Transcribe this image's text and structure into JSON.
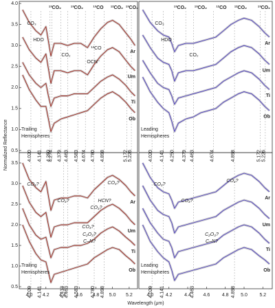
{
  "chart_data": [
    {
      "type": "line",
      "title_lines": [
        "Trailing",
        "Hemispheres"
      ],
      "ylabel": "Normalized Reflectance",
      "xlim": [
        3.88,
        5.3
      ],
      "ylim": [
        0.45,
        4.05
      ],
      "yticks": [
        0.5,
        {
          "value": 1,
          "label": "1.0"
        },
        1.5,
        {
          "value": 2,
          "label": "2.0"
        },
        2.5,
        {
          "value": 3,
          "label": "3.0"
        },
        3.5,
        {
          "value": 4,
          "label": "4.0"
        }
      ],
      "x": [
        3.92,
        4.0,
        4.08,
        4.14,
        4.2,
        4.23,
        4.26,
        4.3,
        4.38,
        4.46,
        4.54,
        4.62,
        4.7,
        4.78,
        4.86,
        4.94,
        5.0,
        5.08,
        5.16,
        5.22,
        5.27
      ],
      "series": [
        {
          "name": "Ar",
          "color": "#a3261c",
          "values": [
            3.85,
            3.55,
            3.35,
            3.25,
            3.45,
            3.1,
            2.75,
            3.05,
            3.05,
            3.0,
            3.05,
            3.05,
            2.95,
            3.2,
            3.4,
            3.55,
            3.6,
            3.5,
            3.3,
            3.15,
            3.0
          ]
        },
        {
          "name": "Um",
          "color": "#a3261c",
          "values": [
            3.2,
            2.9,
            2.7,
            2.6,
            2.8,
            2.45,
            2.1,
            2.4,
            2.4,
            2.35,
            2.4,
            2.4,
            2.3,
            2.55,
            2.75,
            2.9,
            2.95,
            2.85,
            2.65,
            2.5,
            2.4
          ]
        },
        {
          "name": "Ti",
          "color": "#a3261c",
          "values": [
            2.6,
            2.3,
            2.1,
            2.0,
            2.1,
            1.8,
            1.55,
            1.75,
            1.8,
            1.8,
            1.85,
            1.85,
            1.85,
            2.0,
            2.15,
            2.25,
            2.3,
            2.2,
            2.05,
            1.9,
            1.8
          ]
        },
        {
          "name": "Ob",
          "color": "#a3261c",
          "values": [
            2.3,
            1.95,
            1.7,
            1.55,
            1.55,
            1.25,
            0.95,
            1.15,
            1.25,
            1.3,
            1.35,
            1.4,
            1.45,
            1.6,
            1.75,
            1.85,
            1.9,
            1.8,
            1.65,
            1.5,
            1.4
          ]
        }
      ],
      "vlines": [
        {
          "value": 4.02,
          "label": "4.020"
        },
        {
          "value": 4.141,
          "label": "4.141"
        },
        {
          "value": 4.25,
          "label": "4.250"
        },
        {
          "value": 4.274,
          "label": "4.274"
        },
        {
          "value": 4.379,
          "label": "4.379"
        },
        {
          "value": 4.463,
          "label": "4.463"
        },
        {
          "value": 4.583,
          "label": "4.583"
        },
        {
          "value": 4.674,
          "label": "4.674"
        },
        {
          "value": 4.78,
          "label": "4.780"
        },
        {
          "value": 4.898,
          "label": "4.898"
        },
        {
          "value": 5.172,
          "label": "5.172"
        },
        {
          "value": 5.226,
          "label": "5.226"
        }
      ],
      "headers": [
        "¹³CO₂",
        "¹³CO₂",
        "¹³CO",
        "¹²CO₂",
        "¹³CO₂"
      ],
      "annotations": [
        "CO₃",
        "HDO",
        "CO₂",
        "OCN⁻",
        "¹³CO"
      ]
    },
    {
      "type": "line",
      "title_lines": [
        "Leading",
        "Hemispheres"
      ],
      "xlim": [
        3.88,
        5.3
      ],
      "ylim": [
        0.45,
        4.05
      ],
      "x": [
        3.92,
        4.0,
        4.08,
        4.14,
        4.2,
        4.23,
        4.26,
        4.3,
        4.38,
        4.46,
        4.54,
        4.62,
        4.7,
        4.78,
        4.86,
        4.94,
        5.0,
        5.08,
        5.16,
        5.22,
        5.27
      ],
      "series": [
        {
          "name": "Ar",
          "color": "#4b3cc4",
          "values": [
            3.85,
            3.55,
            3.35,
            3.25,
            3.2,
            3.05,
            2.85,
            3.0,
            3.05,
            3.05,
            3.1,
            3.15,
            3.2,
            3.35,
            3.5,
            3.6,
            3.65,
            3.6,
            3.45,
            3.3,
            3.2
          ]
        },
        {
          "name": "Um",
          "color": "#4b3cc4",
          "values": [
            3.25,
            2.95,
            2.7,
            2.6,
            2.55,
            2.4,
            2.15,
            2.35,
            2.4,
            2.4,
            2.45,
            2.5,
            2.55,
            2.7,
            2.85,
            2.95,
            3.0,
            2.95,
            2.8,
            2.65,
            2.55
          ]
        },
        {
          "name": "Ti",
          "color": "#4b3cc4",
          "values": [
            2.65,
            2.35,
            2.1,
            2.0,
            1.95,
            1.8,
            1.6,
            1.75,
            1.8,
            1.85,
            1.9,
            1.95,
            2.0,
            2.15,
            2.25,
            2.35,
            2.4,
            2.35,
            2.2,
            2.05,
            1.95
          ]
        },
        {
          "name": "Ob",
          "color": "#4b3cc4",
          "values": [
            2.25,
            1.9,
            1.65,
            1.5,
            1.4,
            1.2,
            0.95,
            1.15,
            1.25,
            1.3,
            1.4,
            1.45,
            1.5,
            1.65,
            1.75,
            1.85,
            1.9,
            1.85,
            1.7,
            1.55,
            1.45
          ]
        }
      ],
      "vlines": [
        {
          "value": 4.02,
          "label": "4.020"
        },
        {
          "value": 4.141,
          "label": "4.141"
        },
        {
          "value": 4.25,
          "label": "4.250"
        },
        {
          "value": 4.379,
          "label": "4.379"
        },
        {
          "value": 4.463,
          "label": "4.463"
        },
        {
          "value": 4.674,
          "label": "4.674"
        },
        {
          "value": 4.898,
          "label": "4.898"
        },
        {
          "value": 5.172,
          "label": "5.172"
        },
        {
          "value": 5.226,
          "label": "5.226"
        }
      ],
      "headers": [
        "¹³CO₂",
        "¹³CO₂",
        "¹²CO",
        "¹²CO₂",
        "¹³CO₂"
      ],
      "annotations": [
        "CO₃",
        "HDO",
        "CO₂"
      ]
    },
    {
      "type": "line",
      "title_lines": [
        "Trailing",
        "Hemispheres"
      ],
      "xlabel": "Wavelength (μm)",
      "xlim": [
        3.88,
        5.3
      ],
      "ylim": [
        0.45,
        3.75
      ],
      "yticks": [
        0.5,
        {
          "value": 1,
          "label": "1.0"
        },
        1.5,
        {
          "value": 2,
          "label": "2.0"
        },
        2.5,
        {
          "value": 3,
          "label": "3.0"
        },
        3.5
      ],
      "xticks": [
        {
          "value": 4,
          "label": "4.0"
        },
        4.2,
        4.4,
        4.6,
        4.8,
        {
          "value": 5,
          "label": "5.0"
        },
        5.2
      ],
      "x": [
        3.92,
        4.0,
        4.08,
        4.14,
        4.2,
        4.23,
        4.26,
        4.3,
        4.38,
        4.46,
        4.54,
        4.62,
        4.7,
        4.78,
        4.86,
        4.94,
        5.0,
        5.08,
        5.16,
        5.22,
        5.27
      ],
      "series": [
        {
          "name": "Ar",
          "color": "#a3261c",
          "values": [
            3.5,
            3.1,
            2.9,
            2.8,
            3.05,
            2.7,
            2.35,
            2.6,
            2.65,
            2.65,
            2.7,
            2.7,
            2.65,
            2.85,
            3.0,
            3.15,
            3.2,
            3.1,
            2.95,
            2.8,
            2.7
          ]
        },
        {
          "name": "Um",
          "color": "#a3261c",
          "values": [
            2.95,
            2.55,
            2.3,
            2.2,
            2.3,
            2.0,
            1.7,
            1.95,
            2.0,
            2.0,
            2.05,
            2.05,
            2.05,
            2.2,
            2.35,
            2.45,
            2.5,
            2.4,
            2.25,
            2.1,
            2.0
          ]
        },
        {
          "name": "Ti",
          "color": "#a3261c",
          "values": [
            2.4,
            2.0,
            1.75,
            1.65,
            1.7,
            1.45,
            1.2,
            1.4,
            1.45,
            1.45,
            1.5,
            1.5,
            1.55,
            1.65,
            1.8,
            1.9,
            1.95,
            1.85,
            1.7,
            1.6,
            1.5
          ]
        },
        {
          "name": "Ob",
          "color": "#a3261c",
          "values": [
            2.0,
            1.6,
            1.3,
            1.15,
            1.1,
            0.85,
            0.6,
            0.8,
            0.85,
            0.9,
            0.95,
            1.0,
            1.05,
            1.2,
            1.3,
            1.4,
            1.45,
            1.4,
            1.25,
            1.15,
            1.05
          ]
        }
      ],
      "vlines": [
        {
          "value": 4.02,
          "label": "4.020"
        },
        {
          "value": 4.141,
          "label": "4.141"
        },
        {
          "value": 4.413,
          "label": "4.413"
        },
        {
          "value": 4.463,
          "label": "4.463"
        },
        {
          "value": 4.583,
          "label": "4.583"
        },
        {
          "value": 4.78,
          "label": "4.780"
        },
        {
          "value": 4.898,
          "label": "4.898"
        }
      ],
      "annotations": [
        "CO₃?",
        "CO₃?",
        "CO₃?",
        "C₂O₃?",
        "C–N?",
        "CO₃?",
        "HCN?",
        "CO₃?"
      ]
    },
    {
      "type": "line",
      "title_lines": [
        "Leading",
        "Hemispheres"
      ],
      "xlim": [
        3.88,
        5.3
      ],
      "ylim": [
        0.45,
        3.75
      ],
      "xticks": [
        {
          "value": 4,
          "label": "4.0"
        },
        4.2,
        4.4,
        4.6,
        4.8,
        {
          "value": 5,
          "label": "5.0"
        },
        5.2
      ],
      "x": [
        3.92,
        4.0,
        4.08,
        4.14,
        4.2,
        4.23,
        4.26,
        4.3,
        4.38,
        4.46,
        4.54,
        4.62,
        4.7,
        4.78,
        4.86,
        4.94,
        5.0,
        5.08,
        5.16,
        5.22,
        5.27
      ],
      "series": [
        {
          "name": "Ar",
          "color": "#4b3cc4",
          "values": [
            3.5,
            3.15,
            2.9,
            2.8,
            2.75,
            2.6,
            2.4,
            2.55,
            2.6,
            2.65,
            2.7,
            2.75,
            2.8,
            2.95,
            3.1,
            3.2,
            3.25,
            3.2,
            3.05,
            2.9,
            2.8
          ]
        },
        {
          "name": "Um",
          "color": "#4b3cc4",
          "values": [
            2.95,
            2.6,
            2.35,
            2.25,
            2.2,
            2.05,
            1.8,
            1.95,
            2.0,
            2.05,
            2.1,
            2.15,
            2.2,
            2.35,
            2.45,
            2.55,
            2.6,
            2.55,
            2.4,
            2.25,
            2.15
          ]
        },
        {
          "name": "Ti",
          "color": "#4b3cc4",
          "values": [
            2.4,
            2.05,
            1.8,
            1.65,
            1.6,
            1.45,
            1.2,
            1.35,
            1.4,
            1.45,
            1.5,
            1.55,
            1.6,
            1.75,
            1.85,
            1.95,
            2.0,
            1.95,
            1.8,
            1.65,
            1.55
          ]
        },
        {
          "name": "Ob",
          "color": "#4b3cc4",
          "values": [
            2.0,
            1.6,
            1.35,
            1.2,
            1.1,
            0.9,
            0.65,
            0.8,
            0.85,
            0.9,
            0.95,
            1.0,
            1.05,
            1.2,
            1.3,
            1.4,
            1.45,
            1.4,
            1.25,
            1.15,
            1.05
          ]
        }
      ],
      "vlines": [
        {
          "value": 4.02,
          "label": "4.020"
        },
        {
          "value": 4.141,
          "label": "4.141"
        },
        {
          "value": 4.463,
          "label": "4.463"
        },
        {
          "value": 4.898,
          "label": "4.898"
        }
      ],
      "annotations": [
        "CO₃?",
        "CO₃?",
        "C₂O₃?",
        "C–N?",
        "CO₃?"
      ]
    }
  ]
}
